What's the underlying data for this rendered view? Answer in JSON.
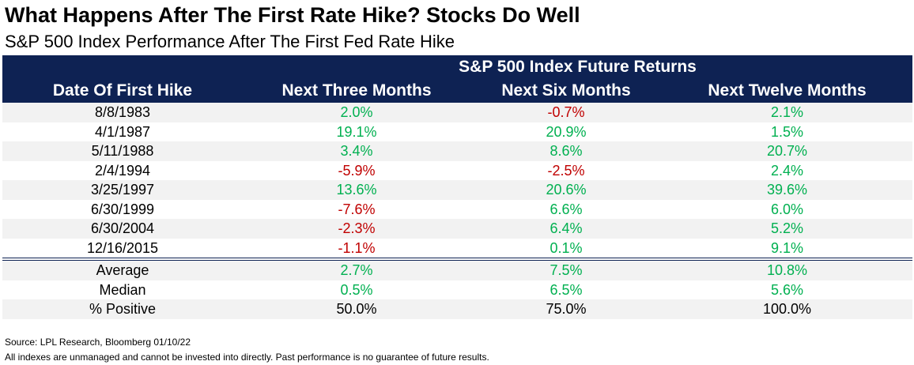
{
  "title": "What Happens After The First Rate Hike? Stocks Do Well",
  "subtitle": "S&P 500 Index Performance After The First Fed Rate Hike",
  "chart_data": {
    "type": "table",
    "group_header": "S&P 500 Index Future Returns",
    "columns": [
      "Date Of First Hike",
      "Next Three Months",
      "Next Six Months",
      "Next Twelve Months"
    ],
    "rows": [
      {
        "date": "8/8/1983",
        "values": [
          "2.0%",
          "-0.7%",
          "2.1%"
        ]
      },
      {
        "date": "4/1/1987",
        "values": [
          "19.1%",
          "20.9%",
          "1.5%"
        ]
      },
      {
        "date": "5/11/1988",
        "values": [
          "3.4%",
          "8.6%",
          "20.7%"
        ]
      },
      {
        "date": "2/4/1994",
        "values": [
          "-5.9%",
          "-2.5%",
          "2.4%"
        ]
      },
      {
        "date": "3/25/1997",
        "values": [
          "13.6%",
          "20.6%",
          "39.6%"
        ]
      },
      {
        "date": "6/30/1999",
        "values": [
          "-7.6%",
          "6.6%",
          "6.0%"
        ]
      },
      {
        "date": "6/30/2004",
        "values": [
          "-2.3%",
          "6.4%",
          "5.2%"
        ]
      },
      {
        "date": "12/16/2015",
        "values": [
          "-1.1%",
          "0.1%",
          "9.1%"
        ]
      }
    ],
    "summary": [
      {
        "label": "Average",
        "values": [
          "2.7%",
          "7.5%",
          "10.8%"
        ]
      },
      {
        "label": "Median",
        "values": [
          "0.5%",
          "6.5%",
          "5.6%"
        ]
      },
      {
        "label": "% Positive",
        "values": [
          "50.0%",
          "75.0%",
          "100.0%"
        ]
      }
    ],
    "colors": {
      "header_bg": "#0e2253",
      "positive": "#00b050",
      "negative": "#c00000",
      "row_shade": "#f2f2f2"
    }
  },
  "notes": {
    "source": "Source: LPL Research, Bloomberg 01/10/22",
    "disclaimer": "All indexes are unmanaged and cannot be invested into directly. Past performance is no guarantee of future results."
  }
}
